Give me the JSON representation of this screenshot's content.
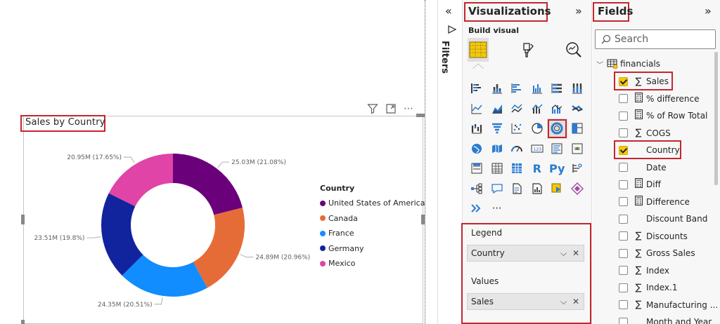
{
  "report": {
    "visual_title": "Sales by Country",
    "header_more": "⋯"
  },
  "chart_data": {
    "type": "pie",
    "variant": "donut",
    "title": "Sales by Country",
    "legend_title": "Country",
    "legend_position": "right",
    "slices": [
      {
        "name": "United States of America",
        "value": 25.03,
        "unit": "M",
        "percent": 21.08,
        "color": "#6b007b",
        "label": "25.03M (21.08%)"
      },
      {
        "name": "Canada",
        "value": 24.89,
        "unit": "M",
        "percent": 20.96,
        "color": "#e66c37",
        "label": "24.89M (20.96%)"
      },
      {
        "name": "France",
        "value": 24.35,
        "unit": "M",
        "percent": 20.51,
        "color": "#118dff",
        "label": "24.35M (20.51%)"
      },
      {
        "name": "Germany",
        "value": 23.51,
        "unit": "M",
        "percent": 19.8,
        "color": "#12239e",
        "label": "23.51M (19.8%)"
      },
      {
        "name": "Mexico",
        "value": 20.95,
        "unit": "M",
        "percent": 17.65,
        "color": "#e044a7",
        "label": "20.95M (17.65%)"
      }
    ]
  },
  "filters": {
    "label": "Filters",
    "collapse": "«"
  },
  "visualizations": {
    "title": "Visualizations",
    "expand": "»",
    "build_visual": "Build visual",
    "more": "⋯",
    "text_icons": {
      "r": "R",
      "py": "Py"
    },
    "wells": {
      "legend_label": "Legend",
      "legend_value": "Country",
      "values_label": "Values",
      "values_value": "Sales",
      "chevron": "⌵",
      "remove": "✕"
    }
  },
  "fields": {
    "title": "Fields",
    "expand": "»",
    "search_placeholder": "Search",
    "table_name": "financials",
    "items": [
      {
        "name": "Sales",
        "icon": "∑",
        "checked": true
      },
      {
        "name": "% difference",
        "icon": "calc",
        "checked": false
      },
      {
        "name": "% of Row Total",
        "icon": "calc",
        "checked": false
      },
      {
        "name": "COGS",
        "icon": "∑",
        "checked": false
      },
      {
        "name": "Country",
        "icon": "",
        "checked": true
      },
      {
        "name": "Date",
        "icon": "",
        "checked": false
      },
      {
        "name": "Diff",
        "icon": "calc",
        "checked": false
      },
      {
        "name": "Difference",
        "icon": "calc",
        "checked": false
      },
      {
        "name": "Discount Band",
        "icon": "",
        "checked": false
      },
      {
        "name": "Discounts",
        "icon": "∑",
        "checked": false
      },
      {
        "name": "Gross Sales",
        "icon": "∑",
        "checked": false
      },
      {
        "name": "Index",
        "icon": "∑",
        "checked": false
      },
      {
        "name": "Index.1",
        "icon": "∑",
        "checked": false
      },
      {
        "name": "Manufacturing ...",
        "icon": "∑",
        "checked": false
      },
      {
        "name": "Month and Year",
        "icon": "",
        "checked": false
      }
    ]
  },
  "colors": {
    "highlight": "#c4262e",
    "check": "#f2c811",
    "pane_bg": "#f7f7f7"
  }
}
